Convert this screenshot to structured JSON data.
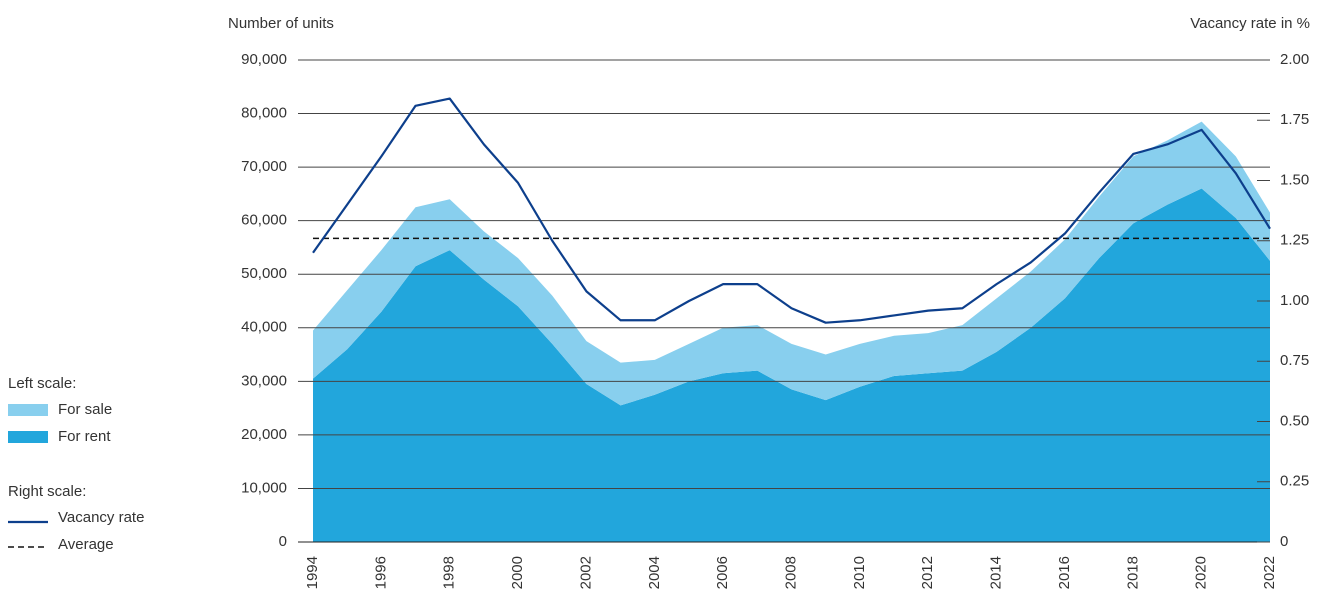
{
  "chart_data": {
    "type": "area-line",
    "y_label": "Number of units",
    "y2_label": "Vacancy rate in %",
    "legend_groups": [
      "Left scale:",
      "Right scale:"
    ],
    "x": [
      1994,
      1995,
      1996,
      1997,
      1998,
      1999,
      2000,
      2001,
      2002,
      2003,
      2004,
      2005,
      2006,
      2007,
      2008,
      2009,
      2010,
      2011,
      2012,
      2013,
      2014,
      2015,
      2016,
      2017,
      2018,
      2019,
      2020,
      2021,
      2022
    ],
    "xlim": [
      1994,
      2022
    ],
    "xticks": [
      1994,
      1996,
      1998,
      2000,
      2002,
      2004,
      2006,
      2008,
      2010,
      2012,
      2014,
      2016,
      2018,
      2020,
      2022
    ],
    "ylim": [
      0,
      90000
    ],
    "yticks": [
      0,
      {
        "value": 10000,
        "label": "10,000"
      },
      {
        "value": 20000,
        "label": "20,000"
      },
      {
        "value": 30000,
        "label": "30,000"
      },
      {
        "value": 40000,
        "label": "40,000"
      },
      {
        "value": 50000,
        "label": "50,000"
      },
      {
        "value": 60000,
        "label": "60,000"
      },
      {
        "value": 70000,
        "label": "70,000"
      },
      {
        "value": 80000,
        "label": "80,000"
      },
      {
        "value": 90000,
        "label": "90,000"
      }
    ],
    "y2lim": [
      0,
      2
    ],
    "y2ticks": [
      0,
      {
        "value": 0.25,
        "label": "0.25"
      },
      {
        "value": 0.5,
        "label": "0.50"
      },
      {
        "value": 0.75,
        "label": "0.75"
      },
      {
        "value": 1,
        "label": "1.00"
      },
      {
        "value": 1.25,
        "label": "1.25"
      },
      {
        "value": 1.5,
        "label": "1.50"
      },
      {
        "value": 1.75,
        "label": "1.75"
      },
      {
        "value": 2,
        "label": "2.00"
      }
    ],
    "grid": true,
    "stacked": true,
    "series": [
      {
        "name": "For sale",
        "type": "area",
        "color": "#88cfee",
        "values": [
          9000,
          11000,
          11500,
          11000,
          9500,
          9000,
          9000,
          9000,
          8000,
          8000,
          6500,
          7000,
          8500,
          8500,
          8500,
          8500,
          8000,
          7500,
          7500,
          8500,
          10000,
          10500,
          11000,
          11500,
          12500,
          12000,
          12500,
          11500,
          9000
        ]
      },
      {
        "name": "For rent",
        "type": "area",
        "color": "#22a6dc",
        "values": [
          30500,
          36000,
          43000,
          51500,
          54500,
          49000,
          44000,
          37000,
          29500,
          25500,
          27500,
          30000,
          31500,
          32000,
          28500,
          26500,
          29000,
          31000,
          31500,
          32000,
          35500,
          40000,
          45500,
          53000,
          59500,
          63000,
          66000,
          60500,
          52500
        ]
      },
      {
        "name": "Vacancy rate",
        "type": "line",
        "axis": "y2",
        "color": "#0d3f8c",
        "values": [
          1.2,
          1.4,
          1.6,
          1.81,
          1.84,
          1.65,
          1.49,
          1.25,
          1.04,
          0.92,
          0.92,
          1.0,
          1.07,
          1.07,
          0.97,
          0.91,
          0.92,
          0.94,
          0.96,
          0.97,
          1.07,
          1.16,
          1.28,
          1.45,
          1.61,
          1.65,
          1.71,
          1.53,
          1.3
        ]
      }
    ],
    "reference_line": {
      "name": "Average",
      "axis": "y2",
      "value": 1.26,
      "color": "#111111"
    }
  }
}
